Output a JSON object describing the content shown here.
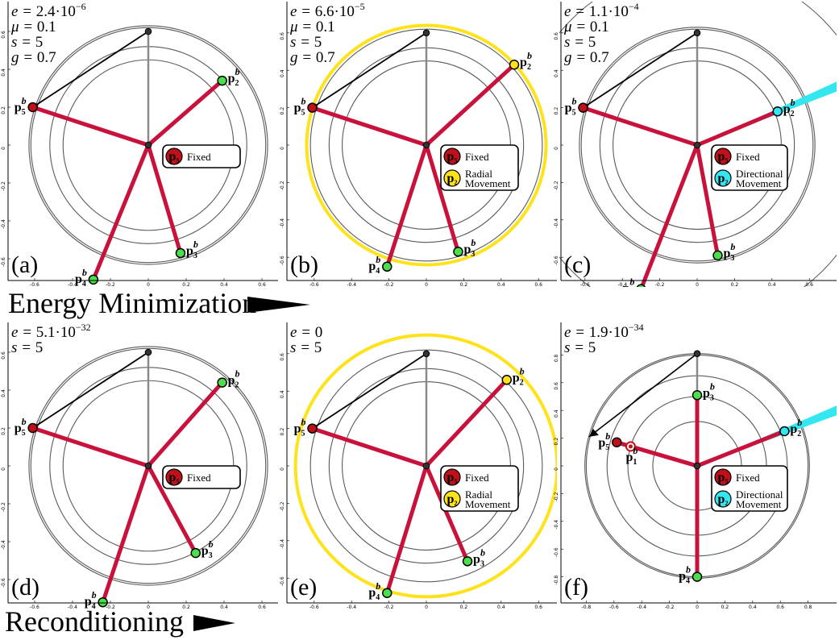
{
  "rows": [
    {
      "label": "Energy Minimization"
    },
    {
      "label": "Reconditioning"
    }
  ],
  "panels": [
    {
      "id": "a",
      "letter": "(a)",
      "params": [
        [
          "e",
          "2.4·10",
          "−6"
        ],
        [
          "μ",
          "0.1",
          ""
        ],
        [
          "s",
          "5",
          ""
        ],
        [
          "g",
          "0.7",
          ""
        ]
      ],
      "rings": [
        0.45,
        0.52,
        0.62,
        0.63
      ],
      "yellow_ring": null,
      "points": [
        {
          "i": "5",
          "x": -0.61,
          "y": 0.2,
          "c": "red"
        },
        {
          "i": "2",
          "x": 0.39,
          "y": 0.34,
          "c": "green"
        },
        {
          "i": "3",
          "x": 0.17,
          "y": -0.57,
          "c": "green"
        },
        {
          "i": "4",
          "x": -0.29,
          "y": -0.71,
          "c": "green"
        }
      ],
      "ticks_x": [
        "-0.6",
        "-0.4",
        "-0.2",
        "0",
        "0.2",
        "0.4",
        "0.6"
      ],
      "ticks_y": [
        "0.6",
        "0.4",
        "0.2",
        "0",
        "-0.2",
        "-0.4",
        "-0.6"
      ],
      "cyan": false,
      "black_arrow": false,
      "p1": false,
      "p3_vertical": false,
      "legend": [
        {
          "point": "5",
          "color": "red",
          "text": [
            "Fixed"
          ]
        }
      ]
    },
    {
      "id": "b",
      "letter": "(b)",
      "params": [
        [
          "e",
          "6.6·10",
          "−5"
        ],
        [
          "μ",
          "0.1",
          ""
        ],
        [
          "s",
          "5",
          ""
        ],
        [
          "g",
          "0.7",
          ""
        ]
      ],
      "rings": [
        0.45,
        0.52,
        0.62
      ],
      "yellow_ring": 0.64,
      "points": [
        {
          "i": "5",
          "x": -0.61,
          "y": 0.2,
          "c": "red"
        },
        {
          "i": "2",
          "x": 0.47,
          "y": 0.43,
          "c": "yellow"
        },
        {
          "i": "3",
          "x": 0.17,
          "y": -0.57,
          "c": "green"
        },
        {
          "i": "4",
          "x": -0.21,
          "y": -0.65,
          "c": "green"
        }
      ],
      "ticks_x": [
        "-0.6",
        "-0.4",
        "-0.2",
        "0",
        "0.2",
        "0.4",
        "0.6"
      ],
      "ticks_y": [
        "0.6",
        "0.4",
        "0.2",
        "0",
        "-0.2",
        "-0.4",
        "-0.6"
      ],
      "cyan": false,
      "black_arrow": false,
      "p1": false,
      "p3_vertical": false,
      "legend": [
        {
          "point": "5",
          "color": "red",
          "text": [
            "Fixed"
          ]
        },
        {
          "point": "2",
          "color": "yellow",
          "text": [
            "Radial",
            "Movement"
          ]
        }
      ]
    },
    {
      "id": "c",
      "letter": "(c)",
      "params": [
        [
          "e",
          "1.1·10",
          "−4"
        ],
        [
          "μ",
          "0.1",
          ""
        ],
        [
          "s",
          "5",
          ""
        ],
        [
          "g",
          "0.7",
          ""
        ]
      ],
      "rings": [
        0.45,
        0.52,
        0.62,
        0.63,
        0.95
      ],
      "yellow_ring": null,
      "points": [
        {
          "i": "5",
          "x": -0.61,
          "y": 0.2,
          "c": "red"
        },
        {
          "i": "2",
          "x": 0.43,
          "y": 0.18,
          "c": "cyan"
        },
        {
          "i": "3",
          "x": 0.11,
          "y": -0.59,
          "c": "green"
        },
        {
          "i": "4",
          "x": -0.3,
          "y": -0.77,
          "c": "green"
        }
      ],
      "ticks_x": [
        "-0.6",
        "-0.4",
        "-0.2",
        "0",
        "0.2",
        "0.4",
        "0.6"
      ],
      "ticks_y": [
        "0.6",
        "0.4",
        "0.2",
        "0",
        "-0.2",
        "-0.4",
        "-0.6"
      ],
      "cyan": true,
      "black_arrow": false,
      "p1": false,
      "p3_vertical": false,
      "legend": [
        {
          "point": "5",
          "color": "red",
          "text": [
            "Fixed"
          ]
        },
        {
          "point": "2",
          "color": "cyan",
          "text": [
            "Directional",
            "Movement"
          ]
        }
      ]
    },
    {
      "id": "d",
      "letter": "(d)",
      "params": [
        [
          "e",
          "5.1·10",
          "−32"
        ],
        [
          "s",
          "5",
          ""
        ]
      ],
      "rings": [
        0.45,
        0.52,
        0.62,
        0.63
      ],
      "yellow_ring": null,
      "points": [
        {
          "i": "5",
          "x": -0.61,
          "y": 0.2,
          "c": "red"
        },
        {
          "i": "2",
          "x": 0.39,
          "y": 0.44,
          "c": "green"
        },
        {
          "i": "3",
          "x": 0.25,
          "y": -0.46,
          "c": "green"
        },
        {
          "i": "4",
          "x": -0.24,
          "y": -0.72,
          "c": "green"
        }
      ],
      "ticks_x": [
        "-0.6",
        "-0.4",
        "-0.2",
        "0",
        "0.2",
        "0.4",
        "0.6"
      ],
      "ticks_y": [
        "0.6",
        "0.4",
        "0.2",
        "0",
        "-0.2",
        "-0.4",
        "-0.6"
      ],
      "cyan": false,
      "black_arrow": false,
      "p1": false,
      "p3_vertical": false,
      "legend": [
        {
          "point": "5",
          "color": "red",
          "text": [
            "Fixed"
          ]
        }
      ]
    },
    {
      "id": "e",
      "letter": "(e)",
      "params": [
        [
          "e",
          "0",
          ""
        ],
        [
          "s",
          "5",
          ""
        ]
      ],
      "rings": [
        0.45,
        0.52,
        0.62
      ],
      "yellow_ring": 0.7,
      "points": [
        {
          "i": "5",
          "x": -0.61,
          "y": 0.2,
          "c": "red"
        },
        {
          "i": "2",
          "x": 0.43,
          "y": 0.46,
          "c": "yellow"
        },
        {
          "i": "3",
          "x": 0.22,
          "y": -0.51,
          "c": "green"
        },
        {
          "i": "4",
          "x": -0.21,
          "y": -0.68,
          "c": "green"
        }
      ],
      "ticks_x": [
        "-0.6",
        "-0.4",
        "-0.2",
        "0",
        "0.2",
        "0.4",
        "0.6"
      ],
      "ticks_y": [
        "0.6",
        "0.4",
        "0.2",
        "0",
        "-0.2",
        "-0.4",
        "-0.6"
      ],
      "cyan": false,
      "black_arrow": false,
      "p1": false,
      "p3_vertical": false,
      "legend": [
        {
          "point": "5",
          "color": "red",
          "text": [
            "Fixed"
          ]
        },
        {
          "point": "2",
          "color": "yellow",
          "text": [
            "Radial",
            "Movement"
          ]
        }
      ]
    },
    {
      "id": "f",
      "letter": "(f)",
      "params": [
        [
          "e",
          "1.9·10",
          "−34"
        ],
        [
          "s",
          "5",
          ""
        ]
      ],
      "rings": [
        0.32,
        0.5,
        0.65,
        0.8,
        0.81
      ],
      "yellow_ring": null,
      "points": [
        {
          "i": "5",
          "x": -0.58,
          "y": 0.17,
          "c": "red"
        },
        {
          "i": "1",
          "x": -0.48,
          "y": 0.14,
          "c": "red-ring"
        },
        {
          "i": "2",
          "x": 0.63,
          "y": 0.25,
          "c": "cyan"
        },
        {
          "i": "3",
          "x": 0.0,
          "y": 0.51,
          "c": "green"
        },
        {
          "i": "4",
          "x": 0.0,
          "y": -0.8,
          "c": "green"
        }
      ],
      "ticks_x": [
        "-0.8",
        "-0.6",
        "-0.4",
        "-0.2",
        "0",
        "0.2",
        "0.4",
        "0.6",
        "0.8"
      ],
      "ticks_y": [
        "0.8",
        "0.6",
        "0.4",
        "0.2",
        "0",
        "-0.2",
        "-0.4",
        "-0.6",
        "-0.8"
      ],
      "cyan": true,
      "black_arrow": true,
      "p1": true,
      "p3_vertical": true,
      "legend": [
        {
          "point": "5",
          "color": "red",
          "text": [
            "Fixed"
          ]
        },
        {
          "point": "2",
          "color": "cyan",
          "text": [
            "Directional",
            "Movement"
          ]
        }
      ]
    }
  ],
  "point_prefix": "p",
  "point_sup": "b",
  "colors": {
    "edge": "#c8123c",
    "red": "#c0101a",
    "green": "#4be04b",
    "yellow": "#ffe21a",
    "cyan": "#33e6f0",
    "ring": "#5a5a5a",
    "axis": "#8a8a8a",
    "black": "#000000"
  }
}
